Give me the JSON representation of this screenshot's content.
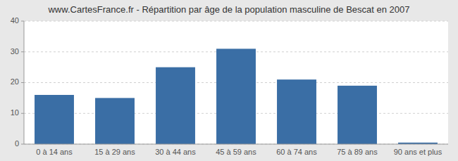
{
  "chart_data": {
    "type": "bar",
    "title": "www.CartesFrance.fr - Répartition par âge de la population masculine de Bescat en 2007",
    "categories": [
      "0 à 14 ans",
      "15 à 29 ans",
      "30 à 44 ans",
      "45 à 59 ans",
      "60 à 74 ans",
      "75 à 89 ans",
      "90 ans et plus"
    ],
    "values": [
      16,
      15,
      25,
      31,
      21,
      19,
      0.5
    ],
    "color": "#3a6ea5",
    "ylim": [
      0,
      40
    ],
    "yticks": [
      0,
      10,
      20,
      30,
      40
    ],
    "grid": true
  }
}
